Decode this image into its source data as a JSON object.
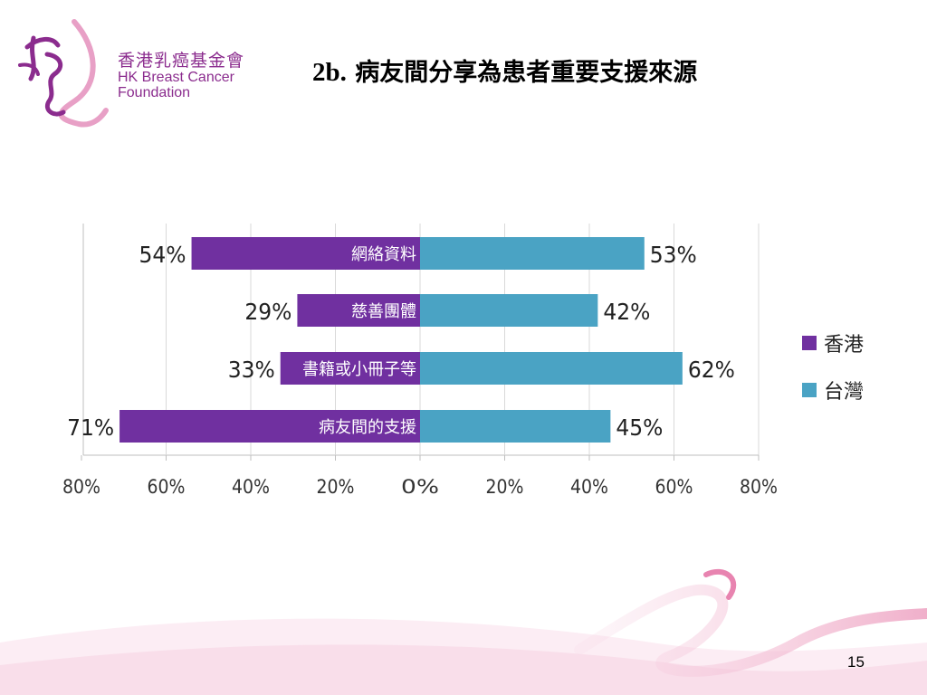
{
  "logo": {
    "name_cn": "香港乳癌基金會",
    "name_en_line1": "HK Breast Cancer",
    "name_en_line2": "Foundation"
  },
  "slide": {
    "title_prefix": "2b.",
    "title_text": "病友間分享為患者重要支援來源",
    "page_number": "15"
  },
  "colors": {
    "hong_kong": "#7030a0",
    "taiwan": "#4aa3c4",
    "brand": "#8b2c8e"
  },
  "chart_data": {
    "type": "bar",
    "orientation": "horizontal-diverging",
    "categories": [
      "網絡資料",
      "慈善團體",
      "書籍或小冊子等",
      "病友間的支援"
    ],
    "series": [
      {
        "name": "香港",
        "values": [
          54,
          29,
          33,
          71
        ],
        "labels": [
          "54%",
          "29%",
          "33%",
          "71%"
        ],
        "direction": "left"
      },
      {
        "name": "台灣",
        "values": [
          53,
          42,
          62,
          45
        ],
        "labels": [
          "53%",
          "42%",
          "62%",
          "45%"
        ],
        "direction": "right"
      }
    ],
    "xticks": [
      "80%",
      "60%",
      "40%",
      "20%",
      "0%",
      "20%",
      "40%",
      "60%",
      "80%"
    ],
    "xlim": [
      -80,
      80
    ],
    "grid": true,
    "legend_position": "right"
  }
}
